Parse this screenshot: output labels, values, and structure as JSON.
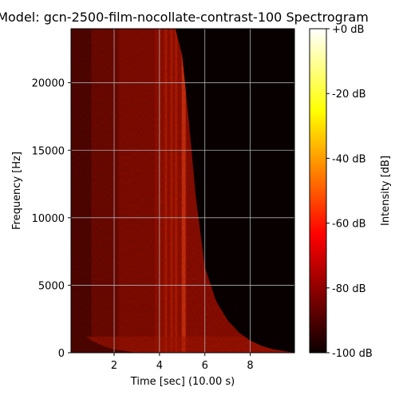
{
  "chart_data": {
    "type": "heatmap",
    "title": "Model: gcn-2500-film-nocollate-contrast-100 Spectrogram",
    "xlabel": "Time [sec] (10.00 s)",
    "ylabel": "Frequency [Hz]",
    "xlim": [
      0.1,
      9.95
    ],
    "ylim": [
      0,
      24000
    ],
    "x_ticks": [
      2,
      4,
      6,
      8
    ],
    "y_ticks": [
      0,
      5000,
      10000,
      15000,
      20000
    ],
    "grid": true,
    "colormap": "hot",
    "colorbar": {
      "label": "Intensity [dB]",
      "range": [
        -100,
        0
      ],
      "ticks": [
        0,
        -20,
        -40,
        -60,
        -80,
        -100
      ],
      "tick_labels": [
        "+0 dB",
        "-20 dB",
        "-40 dB",
        "-60 dB",
        "-80 dB",
        "-100 dB"
      ]
    },
    "energy_envelope": {
      "time_sec": [
        0.1,
        1,
        2,
        3,
        4,
        4.7,
        5,
        5.3,
        5.6,
        6,
        6.5,
        7,
        7.5,
        8,
        8.5,
        9,
        9.5
      ],
      "max_freq_hz": [
        24000,
        24000,
        24000,
        24000,
        24000,
        24000,
        22000,
        17000,
        11500,
        6300,
        3800,
        2400,
        1500,
        900,
        500,
        250,
        120
      ]
    },
    "bright_bands_sec": [
      4.3,
      4.55,
      4.75,
      5.05
    ],
    "low_freq_onset": {
      "time_sec": [
        0.1,
        0.5,
        1,
        1.5,
        2,
        3
      ],
      "max_freq_hz": [
        2400,
        1500,
        900,
        500,
        250,
        0
      ]
    }
  }
}
